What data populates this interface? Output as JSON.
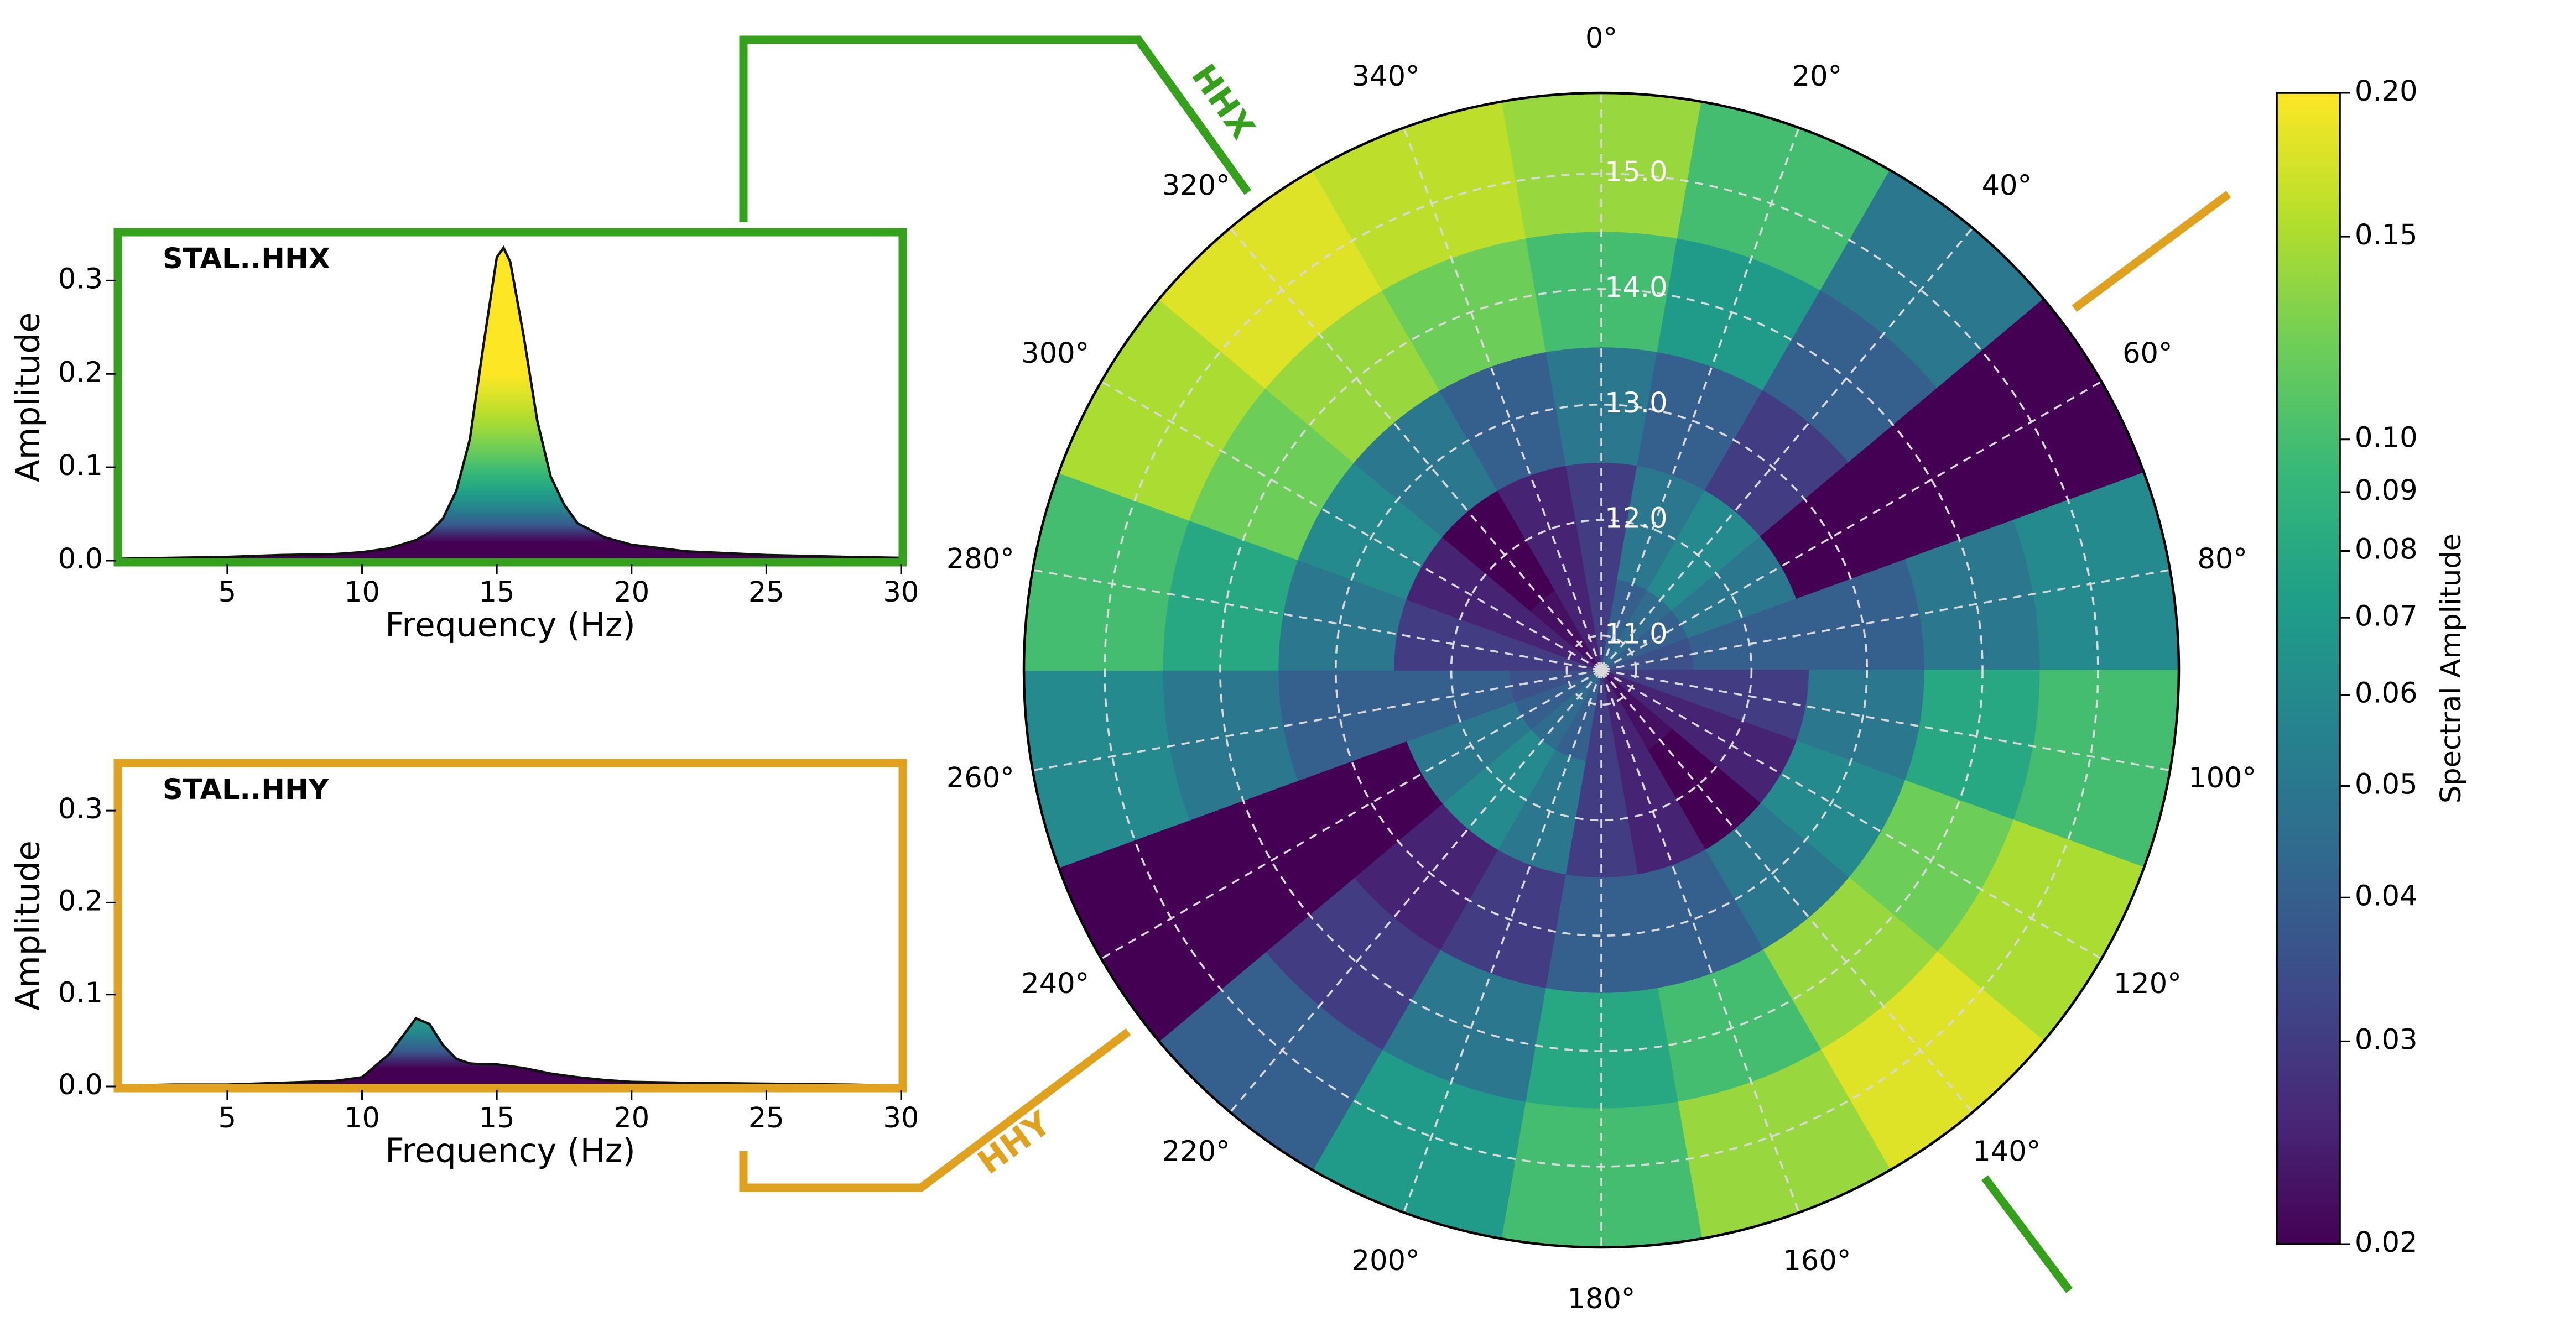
{
  "chart_data": [
    {
      "type": "area",
      "title": "STAL..HHX",
      "xlabel": "Frequency (Hz)",
      "ylabel": "Amplitude",
      "frame_color": "#35a01b",
      "x": [
        1,
        3,
        5,
        7,
        9,
        10,
        11,
        12,
        12.5,
        13,
        13.5,
        14,
        14.5,
        15,
        15.25,
        15.5,
        16,
        16.5,
        17,
        17.5,
        18,
        19,
        20,
        22,
        25,
        28,
        30
      ],
      "values": [
        0.002,
        0.003,
        0.004,
        0.006,
        0.007,
        0.009,
        0.013,
        0.022,
        0.03,
        0.045,
        0.075,
        0.13,
        0.23,
        0.325,
        0.335,
        0.32,
        0.24,
        0.15,
        0.09,
        0.06,
        0.04,
        0.025,
        0.017,
        0.01,
        0.006,
        0.004,
        0.003
      ],
      "xlim": [
        1,
        30
      ],
      "xticks": [
        5,
        10,
        15,
        20,
        25,
        30
      ],
      "ylim": [
        0,
        0.35
      ],
      "yticks": [
        {
          "value": 0,
          "label": "0.0"
        },
        0.1,
        0.2,
        0.3
      ]
    },
    {
      "type": "area",
      "title": "STAL..HHY",
      "xlabel": "Frequency (Hz)",
      "ylabel": "Amplitude",
      "frame_color": "#e0a11f",
      "x": [
        1,
        3,
        5,
        7,
        9,
        10,
        11,
        12,
        12.5,
        13,
        13.5,
        14,
        14.5,
        15,
        15.25,
        15.5,
        16,
        16.5,
        17,
        17.5,
        18,
        19,
        20,
        22,
        25,
        28,
        30
      ],
      "values": [
        0.001,
        0.002,
        0.002,
        0.004,
        0.006,
        0.01,
        0.035,
        0.074,
        0.068,
        0.045,
        0.03,
        0.025,
        0.024,
        0.024,
        0.023,
        0.022,
        0.02,
        0.017,
        0.014,
        0.012,
        0.01,
        0.007,
        0.005,
        0.004,
        0.003,
        0.002,
        0.001
      ],
      "xlim": [
        1,
        30
      ],
      "xticks": [
        5,
        10,
        15,
        20,
        25,
        30
      ],
      "ylim": [
        0,
        0.35
      ],
      "yticks": [
        {
          "value": 0,
          "label": "0.0"
        },
        0.1,
        0.2,
        0.3
      ]
    },
    {
      "type": "polar_heatmap",
      "cmap": "viridis",
      "theta": [
        0,
        20,
        40,
        60,
        80,
        100,
        120,
        140,
        160,
        180,
        200,
        220,
        240,
        260,
        280,
        300,
        320,
        340
      ],
      "theta_ticks": [
        {
          "value": 0,
          "label": "0°"
        },
        {
          "value": 20,
          "label": "20°"
        },
        {
          "value": 40,
          "label": "40°"
        },
        {
          "value": 60,
          "label": "60°"
        },
        {
          "value": 80,
          "label": "80°"
        },
        {
          "value": 100,
          "label": "100°"
        },
        {
          "value": 120,
          "label": "120°"
        },
        {
          "value": 140,
          "label": "140°"
        },
        {
          "value": 160,
          "label": "160°"
        },
        {
          "value": 180,
          "label": "180°"
        },
        {
          "value": 200,
          "label": "200°"
        },
        {
          "value": 220,
          "label": "220°"
        },
        {
          "value": 240,
          "label": "240°"
        },
        {
          "value": 260,
          "label": "260°"
        },
        {
          "value": 280,
          "label": "280°"
        },
        {
          "value": 300,
          "label": "300°"
        },
        {
          "value": 320,
          "label": "320°"
        },
        {
          "value": 340,
          "label": "340°"
        }
      ],
      "r": [
        11,
        12,
        13,
        14,
        15
      ],
      "rlim": [
        10.7,
        15.7
      ],
      "rticks": [
        {
          "value": 11,
          "label": "11.0"
        },
        {
          "value": 12,
          "label": "12.0"
        },
        {
          "value": 13,
          "label": "13.0"
        },
        {
          "value": 14,
          "label": "14.0"
        },
        {
          "value": 15,
          "label": "15.0"
        }
      ],
      "values": [
        [
          0.03,
          0.04,
          0.045,
          0.04,
          0.035,
          0.03,
          0.025,
          0.022,
          0.025,
          0.03,
          0.04,
          0.045,
          0.04,
          0.035,
          0.03,
          0.025,
          0.022,
          0.025
        ],
        [
          0.03,
          0.05,
          0.06,
          0.05,
          0.04,
          0.03,
          0.025,
          0.02,
          0.025,
          0.03,
          0.05,
          0.06,
          0.05,
          0.04,
          0.03,
          0.025,
          0.02,
          0.025
        ],
        [
          0.05,
          0.04,
          0.03,
          0.02,
          0.04,
          0.05,
          0.06,
          0.05,
          0.04,
          0.04,
          0.03,
          0.025,
          0.02,
          0.04,
          0.05,
          0.06,
          0.05,
          0.04
        ],
        [
          0.1,
          0.07,
          0.04,
          0.02,
          0.05,
          0.08,
          0.12,
          0.14,
          0.1,
          0.08,
          0.05,
          0.03,
          0.02,
          0.05,
          0.08,
          0.12,
          0.14,
          0.12
        ],
        [
          0.14,
          0.1,
          0.05,
          0.02,
          0.06,
          0.1,
          0.15,
          0.18,
          0.14,
          0.1,
          0.07,
          0.04,
          0.02,
          0.06,
          0.1,
          0.15,
          0.18,
          0.16
        ]
      ],
      "colorbar": {
        "label": "Spectral Amplitude",
        "scale": "log",
        "lim": [
          0.02,
          0.2
        ],
        "ticks": [
          0.02,
          0.03,
          0.04,
          0.05,
          0.06,
          0.07,
          0.08,
          0.09,
          {
            "value": 0.1,
            "label": "0.10"
          },
          0.15,
          {
            "value": 0.2,
            "label": "0.20"
          }
        ]
      },
      "annotations": [
        {
          "text": "HHX",
          "color": "#35a01b"
        },
        {
          "text": "HHY",
          "color": "#e0a11f"
        }
      ]
    }
  ]
}
